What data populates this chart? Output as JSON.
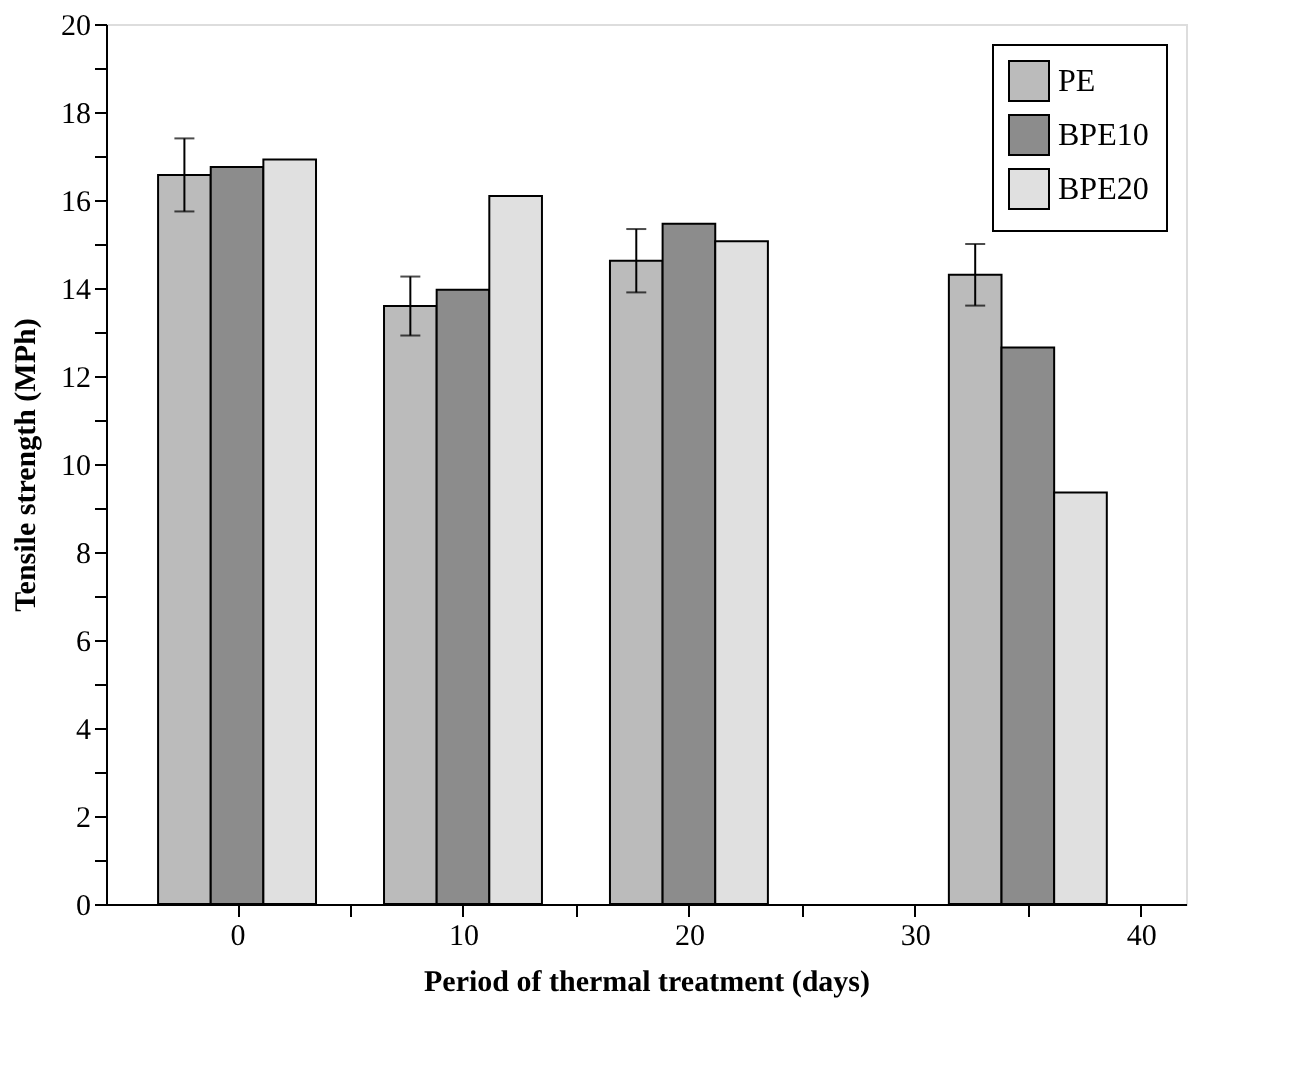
{
  "chart_data": {
    "type": "bar",
    "xlabel": "Period of thermal treatment (days)",
    "ylabel": "Tensile strength (MPh)",
    "xlim": [
      -5.8,
      42
    ],
    "xticks": [
      0,
      {
        "value": 5,
        "label": null
      },
      10,
      {
        "value": 15,
        "label": null
      },
      20,
      {
        "value": 25,
        "label": null
      },
      30,
      {
        "value": 35,
        "label": null
      },
      40
    ],
    "ylim": [
      0,
      20
    ],
    "yticks": [
      0,
      {
        "value": 1,
        "label": null
      },
      2,
      {
        "value": 3,
        "label": null
      },
      4,
      {
        "value": 5,
        "label": null
      },
      6,
      {
        "value": 7,
        "label": null
      },
      8,
      {
        "value": 9,
        "label": null
      },
      10,
      {
        "value": 11,
        "label": null
      },
      12,
      {
        "value": 13,
        "label": null
      },
      14,
      {
        "value": 15,
        "label": null
      },
      16,
      {
        "value": 17,
        "label": null
      },
      18,
      {
        "value": 19,
        "label": null
      },
      20
    ],
    "legend": "top right",
    "grid": false,
    "series": [
      {
        "name": "PE",
        "color": "#bbbbbb",
        "x": [
          -2.33,
          7.67,
          17.67,
          32.67
        ],
        "values": [
          16.57,
          13.59,
          14.62,
          14.3
        ],
        "errors": [
          0.83,
          0.67,
          0.72,
          0.7
        ]
      },
      {
        "name": "BPE10",
        "color": "#8c8c8c",
        "x": [
          0,
          10,
          20,
          35
        ],
        "values": [
          16.75,
          13.96,
          15.46,
          12.65
        ]
      },
      {
        "name": "BPE20",
        "color": "#e0e0e0",
        "x": [
          2.33,
          12.33,
          22.33,
          37.33
        ],
        "values": [
          16.92,
          16.09,
          15.06,
          9.35
        ]
      }
    ]
  }
}
